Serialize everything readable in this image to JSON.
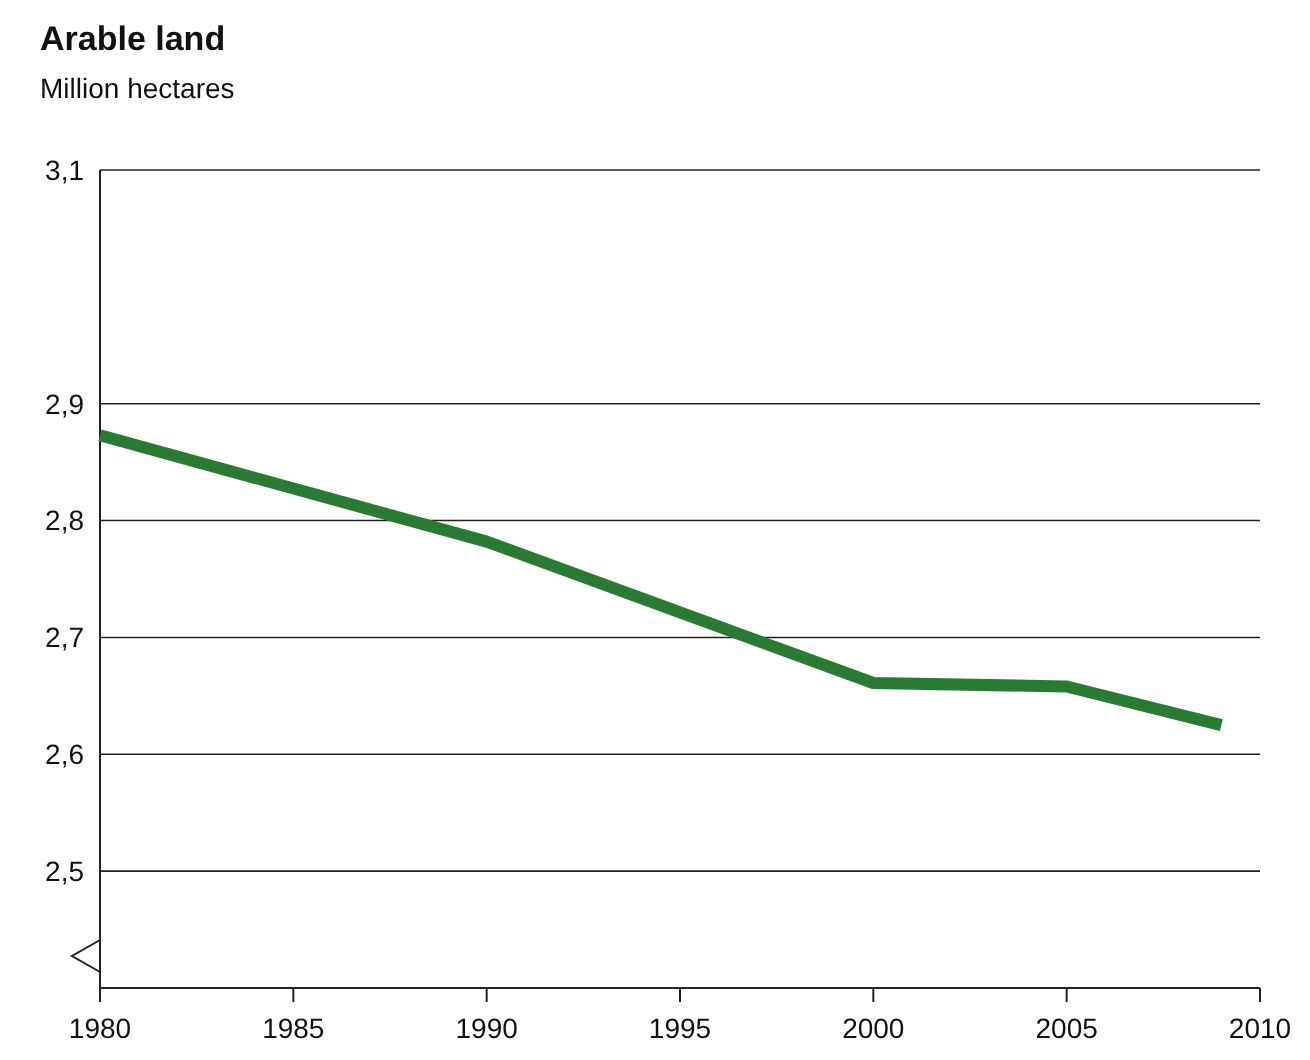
{
  "chart_data": {
    "type": "line",
    "title": "Arable land",
    "subtitle": "Million hectares",
    "x": [
      1980,
      1990,
      2000,
      2005,
      2009
    ],
    "series": [
      {
        "color": "#2b7a33",
        "values": [
          2.873,
          2.782,
          2.661,
          2.658,
          2.625
        ]
      }
    ],
    "xlim": [
      1980,
      2010
    ],
    "xticks": [
      1980,
      1985,
      1990,
      1995,
      2000,
      2005,
      2010
    ],
    "ylim": [
      2.4,
      3.1
    ],
    "yticks": [
      {
        "value": 2.5,
        "label": "2,5"
      },
      {
        "value": 2.6,
        "label": "2,6"
      },
      {
        "value": 2.7,
        "label": "2,7"
      },
      {
        "value": 2.8,
        "label": "2,8"
      },
      {
        "value": 2.9,
        "label": "2,9"
      },
      {
        "value": 3.1,
        "label": "3,1"
      }
    ],
    "grid": "y",
    "line_style": "solid",
    "marker": "none"
  }
}
